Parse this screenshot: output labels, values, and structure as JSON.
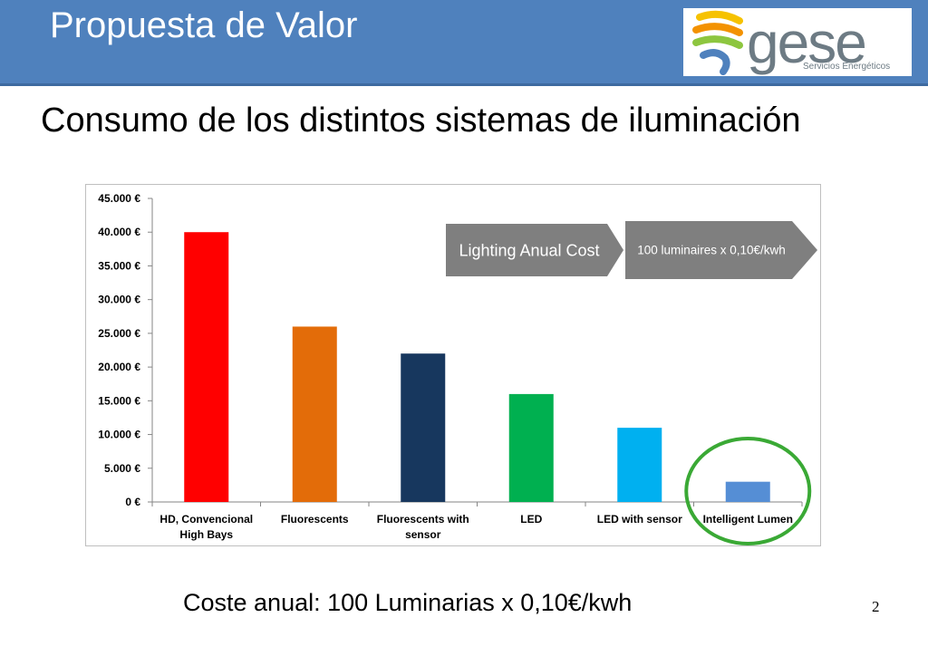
{
  "header": {
    "title": "Propuesta de Valor",
    "logo": {
      "text": "gese",
      "tagline": "Servicios Energéticos"
    }
  },
  "subtitle": "Consumo de los distintos sistemas de iluminación",
  "chart_data": {
    "type": "bar",
    "categories": [
      [
        "HD, Convencional",
        "High Bays"
      ],
      [
        "Fluorescents"
      ],
      [
        "Fluorescents with",
        "sensor"
      ],
      [
        "LED"
      ],
      [
        "LED with sensor"
      ],
      [
        "Intelligent Lumen"
      ]
    ],
    "values": [
      40000,
      26000,
      22000,
      16000,
      11000,
      3000
    ],
    "colors": [
      "#ff0000",
      "#e36c09",
      "#17375e",
      "#00b050",
      "#00b0f0",
      "#558ed5"
    ],
    "ylim": [
      0,
      45000
    ],
    "yticks": [
      0,
      5000,
      10000,
      15000,
      20000,
      25000,
      30000,
      35000,
      40000,
      45000
    ],
    "ytick_labels": [
      "0 €",
      "5.000 €",
      "10.000 €",
      "15.000 €",
      "20.000 €",
      "25.000 €",
      "30.000 €",
      "35.000 €",
      "40.000 €",
      "45.000 €"
    ],
    "title": "",
    "xlabel": "",
    "ylabel": "",
    "grid": false,
    "highlight": "Intelligent Lumen",
    "highlight_color": "#3aa935",
    "annotations": [
      "Lighting Anual Cost",
      "100 luminaires x 0,10€/kwh"
    ],
    "annotation_color": "#7f7f7f"
  },
  "footer": {
    "text": "Coste anual: 100 Luminarias x 0,10€/kwh",
    "page_number": "2"
  }
}
